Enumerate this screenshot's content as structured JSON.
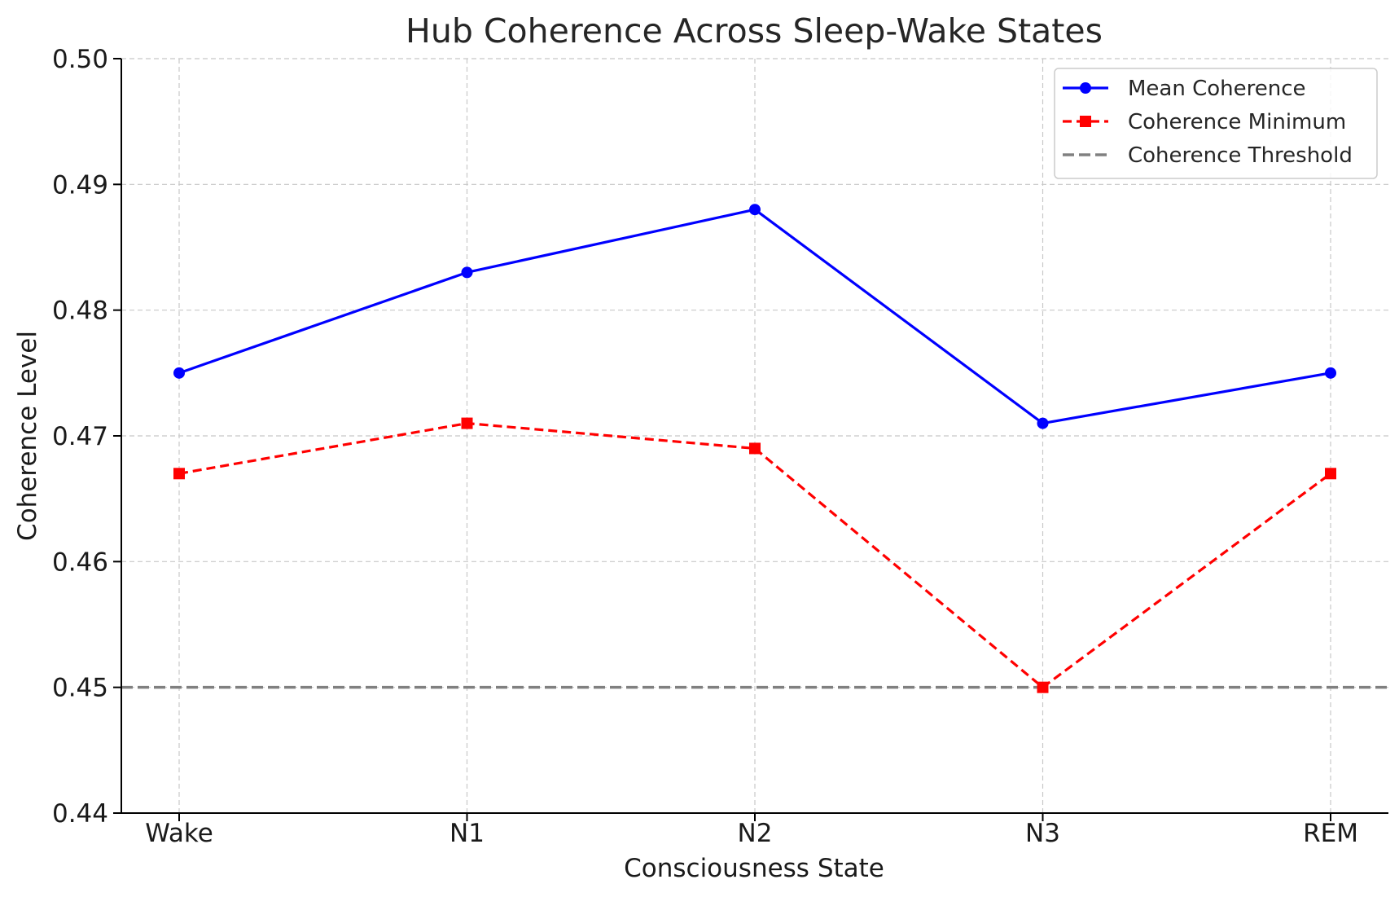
{
  "chart_data": {
    "type": "line",
    "title": "Hub Coherence Across Sleep-Wake States",
    "xlabel": "Consciousness State",
    "ylabel": "Coherence Level",
    "categories": [
      "Wake",
      "N1",
      "N2",
      "N3",
      "REM"
    ],
    "ylim": [
      0.44,
      0.5
    ],
    "yticks": [
      "0.44",
      "0.45",
      "0.46",
      "0.47",
      "0.48",
      "0.49",
      "0.50"
    ],
    "grid": true,
    "legend_position": "top-right",
    "series": [
      {
        "name": "Mean Coherence",
        "values": [
          0.475,
          0.483,
          0.488,
          0.471,
          0.475
        ],
        "color": "#0000ff",
        "style": "solid",
        "marker": "circle"
      },
      {
        "name": "Coherence Minimum",
        "values": [
          0.467,
          0.471,
          0.469,
          0.45,
          0.467
        ],
        "color": "#ff0000",
        "style": "dashed",
        "marker": "square"
      }
    ],
    "threshold": {
      "name": "Coherence Threshold",
      "value": 0.45,
      "color": "#808080",
      "style": "dashed"
    }
  }
}
